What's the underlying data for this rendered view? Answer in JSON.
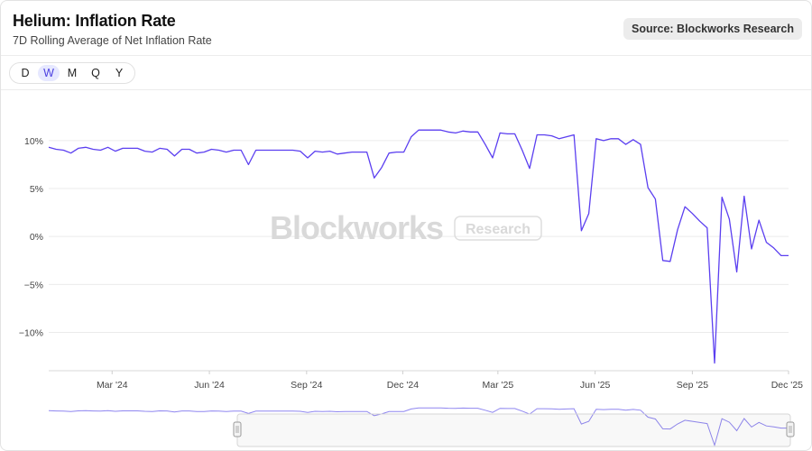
{
  "header": {
    "title": "Helium: Inflation Rate",
    "subtitle": "7D Rolling Average of Net Inflation Rate",
    "source": "Source: Blockworks Research"
  },
  "periods": [
    "D",
    "W",
    "M",
    "Q",
    "Y"
  ],
  "active_period": "W",
  "watermark": {
    "brand": "Blockworks",
    "tag": "Research"
  },
  "colors": {
    "line": "#5b3ff0",
    "grid": "#ebebeb",
    "navigator": "#8f86f0"
  },
  "chart_data": {
    "type": "line",
    "title": "Helium: Inflation Rate",
    "subtitle": "7D Rolling Average of Net Inflation Rate",
    "xlim": [
      "2024-01-01",
      "2025-12-01"
    ],
    "ylim": [
      -14,
      13
    ],
    "y_ticks": [
      10,
      5,
      0,
      -5,
      -10
    ],
    "y_tick_labels": [
      "10%",
      "5%",
      "0%",
      "−5%",
      "−10%"
    ],
    "x_ticks": [
      "2024-03-01",
      "2024-06-01",
      "2024-09-01",
      "2024-12-01",
      "2025-03-01",
      "2025-06-01",
      "2025-09-01",
      "2025-12-01"
    ],
    "x_tick_labels": [
      "Mar '24",
      "Jun '24",
      "Sep '24",
      "Dec '24",
      "Mar '25",
      "Jun '25",
      "Sep '25",
      "Dec '25"
    ],
    "grid": true,
    "series": [
      {
        "x": [
          "2024-01-01",
          "2024-01-08",
          "2024-01-15",
          "2024-01-22",
          "2024-01-29",
          "2024-02-05",
          "2024-02-12",
          "2024-02-19",
          "2024-02-26",
          "2024-03-04",
          "2024-03-11",
          "2024-03-18",
          "2024-03-25",
          "2024-04-01",
          "2024-04-08",
          "2024-04-15",
          "2024-04-22",
          "2024-04-29",
          "2024-05-06",
          "2024-05-13",
          "2024-05-20",
          "2024-05-27",
          "2024-06-03",
          "2024-06-10",
          "2024-06-17",
          "2024-06-24",
          "2024-07-01",
          "2024-07-08",
          "2024-07-15",
          "2024-07-22",
          "2024-07-29",
          "2024-08-05",
          "2024-08-12",
          "2024-08-19",
          "2024-08-26",
          "2024-09-02",
          "2024-09-09",
          "2024-09-16",
          "2024-09-23",
          "2024-09-30",
          "2024-10-07",
          "2024-10-14",
          "2024-10-21",
          "2024-10-28",
          "2024-11-04",
          "2024-11-11",
          "2024-11-18",
          "2024-11-25",
          "2024-12-02",
          "2024-12-09",
          "2024-12-16",
          "2024-12-23",
          "2024-12-30",
          "2025-01-06",
          "2025-01-13",
          "2025-01-20",
          "2025-01-27",
          "2025-02-03",
          "2025-02-10",
          "2025-02-17",
          "2025-02-24",
          "2025-03-03",
          "2025-03-10",
          "2025-03-17",
          "2025-03-24",
          "2025-03-31",
          "2025-04-07",
          "2025-04-14",
          "2025-04-21",
          "2025-04-28",
          "2025-05-05",
          "2025-05-12",
          "2025-05-19",
          "2025-05-26",
          "2025-06-02",
          "2025-06-09",
          "2025-06-16",
          "2025-06-23",
          "2025-06-30",
          "2025-07-07",
          "2025-07-14",
          "2025-07-21",
          "2025-07-28",
          "2025-08-04",
          "2025-08-11",
          "2025-08-18",
          "2025-08-25",
          "2025-09-01",
          "2025-09-08",
          "2025-09-15",
          "2025-09-22",
          "2025-09-29",
          "2025-10-06",
          "2025-10-13",
          "2025-10-20",
          "2025-10-27",
          "2025-11-03",
          "2025-11-10",
          "2025-11-17",
          "2025-11-24",
          "2025-12-01"
        ],
        "y": [
          9.3,
          9.1,
          9.0,
          8.7,
          9.2,
          9.3,
          9.1,
          9.0,
          9.3,
          8.9,
          9.2,
          9.2,
          9.2,
          8.9,
          8.8,
          9.2,
          9.1,
          8.4,
          9.1,
          9.1,
          8.7,
          8.8,
          9.1,
          9.0,
          8.8,
          9.0,
          9.0,
          7.5,
          9.0,
          9.0,
          9.0,
          9.0,
          9.0,
          9.0,
          8.9,
          8.2,
          8.9,
          8.8,
          8.9,
          8.6,
          8.7,
          8.8,
          8.8,
          8.8,
          6.1,
          7.2,
          8.7,
          8.8,
          8.8,
          10.4,
          11.1,
          11.1,
          11.1,
          11.1,
          10.9,
          10.8,
          11.0,
          10.9,
          10.9,
          9.6,
          8.2,
          10.8,
          10.7,
          10.7,
          9.0,
          7.1,
          10.6,
          10.6,
          10.5,
          10.2,
          10.4,
          10.6,
          0.6,
          2.4,
          10.2,
          10.0,
          10.2,
          10.2,
          9.6,
          10.1,
          9.6,
          5.1,
          3.9,
          -2.5,
          -2.6,
          0.7,
          3.1,
          2.4,
          1.6,
          0.9,
          -13.2,
          4.1,
          1.8,
          -3.7,
          4.2,
          -1.3,
          1.7,
          -0.6,
          -1.2,
          -2.0,
          -2.0
        ]
      }
    ]
  }
}
